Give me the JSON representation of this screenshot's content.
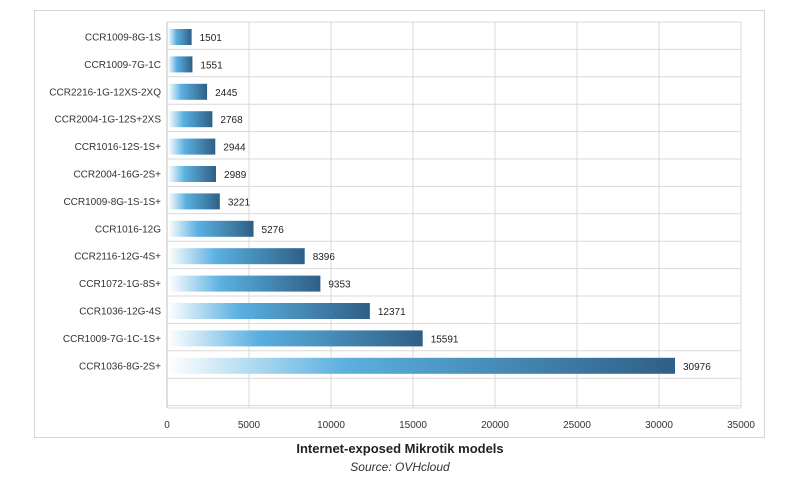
{
  "caption": {
    "title": "Internet-exposed Mikrotik models",
    "source": "Source: OVHcloud"
  },
  "chart_data": {
    "type": "bar",
    "orientation": "horizontal",
    "categories": [
      "CCR1009-8G-1S",
      "CCR1009-7G-1C",
      "CCR2216-1G-12XS-2XQ",
      "CCR2004-1G-12S+2XS",
      "CCR1016-12S-1S+",
      "CCR2004-16G-2S+",
      "CCR1009-8G-1S-1S+",
      "CCR1016-12G",
      "CCR2116-12G-4S+",
      "CCR1072-1G-8S+",
      "CCR1036-12G-4S",
      "CCR1009-7G-1C-1S+",
      "CCR1036-8G-2S+"
    ],
    "values": [
      1501,
      1551,
      2445,
      2768,
      2944,
      2989,
      3221,
      5276,
      8396,
      9353,
      12371,
      15591,
      30976
    ],
    "xlim": [
      0,
      35000
    ],
    "xticks": [
      0,
      5000,
      10000,
      15000,
      20000,
      25000,
      30000,
      35000
    ],
    "grid": true,
    "data_labels": true,
    "colors": {
      "bar_light": "#ffffff",
      "bar_mid": "#5ab0e0",
      "bar_dark": "#2f5f86",
      "grid": "#d9d9d9"
    }
  }
}
